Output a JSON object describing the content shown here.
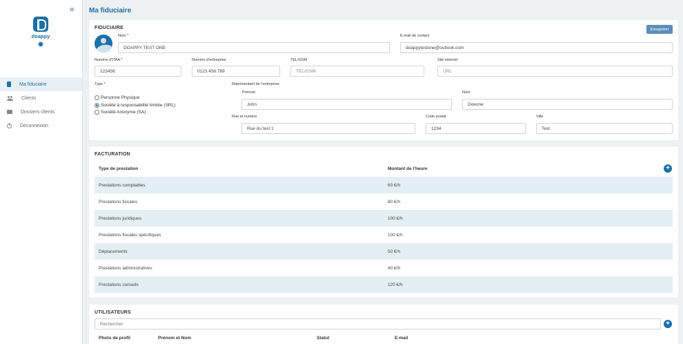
{
  "sidebar": {
    "brand": "doappy",
    "items": [
      {
        "label": "Ma fiduciaire",
        "icon": "document-icon"
      },
      {
        "label": "Clients",
        "icon": "users-icon"
      },
      {
        "label": "Dossiers clients",
        "icon": "folder-icon"
      },
      {
        "label": "Déconnexion",
        "icon": "power-icon"
      }
    ]
  },
  "header": {
    "title": "Ma fiduciaire"
  },
  "fiduciaire": {
    "title": "FIDUCIAIRE",
    "save_label": "Enregistrer",
    "nom_label": "Nom *",
    "nom_value": "DOAPPY TEST ONE",
    "email_label": "E-mail de contact",
    "email_value": "doappytestone@outlook.com",
    "itaa_label": "Numéro d'ITAA *",
    "itaa_value": "123456",
    "entreprise_label": "Numéro d'entreprise",
    "entreprise_value": "0123 456.789",
    "tel_label": "TEL/GSM",
    "tel_placeholder": "TEL/GSM",
    "site_label": "Site internet",
    "site_placeholder": "URL",
    "type_label": "Type *",
    "types": [
      {
        "label": "Personne Physique",
        "checked": false
      },
      {
        "label": "Société à responsabilité limitée (SRL)",
        "checked": true
      },
      {
        "label": "Société Anonyme (SA)",
        "checked": false
      }
    ],
    "representant_label": "Représentant de l'entreprise",
    "prenom_label": "Prénom",
    "prenom_value": "John",
    "nom2_label": "Nom",
    "nom2_value": "Doeone",
    "rue_label": "Rue et numéro",
    "rue_value": "Rue du test 1",
    "cp_label": "Code postal",
    "cp_value": "1234",
    "ville_label": "Ville",
    "ville_value": "Test"
  },
  "facturation": {
    "title": "FACTURATION",
    "col_type": "Type de prestation",
    "col_montant": "Montant de l'heure",
    "rows": [
      {
        "type": "Prestations comptables",
        "montant": "60 €/h"
      },
      {
        "type": "Prestations fiscales",
        "montant": "80 €/h"
      },
      {
        "type": "Prestations juridiques",
        "montant": "100 €/h"
      },
      {
        "type": "Prestations fiscales spécifiques",
        "montant": "100 €/h"
      },
      {
        "type": "Déplacements",
        "montant": "50 €/h"
      },
      {
        "type": "Prestations administratives",
        "montant": "40 €/h"
      },
      {
        "type": "Prestations conseils",
        "montant": "120 €/h"
      }
    ]
  },
  "utilisateurs": {
    "title": "UTILISATEURS",
    "search_placeholder": "Rechercher",
    "col_photo": "Photo de profil",
    "col_nom": "Prénom et Nom",
    "col_statut": "Statut",
    "col_email": "E-mail"
  },
  "colors": {
    "accent": "#1d6fa5",
    "row_alt": "#e3eef5",
    "save_button": "#5b8fb9"
  }
}
